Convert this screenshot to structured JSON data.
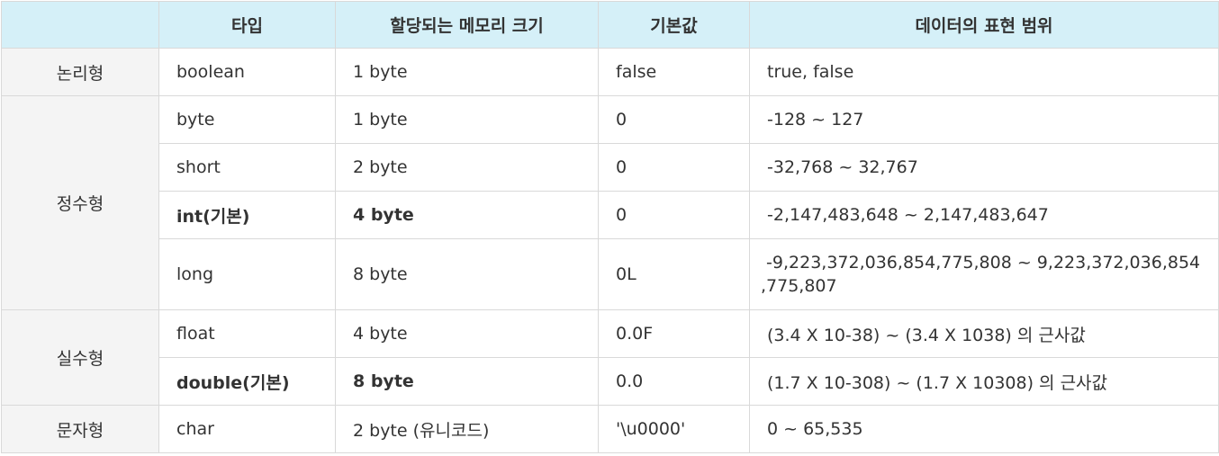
{
  "headers": [
    "",
    "타입",
    "할당되는 메모리 크기",
    "기본값",
    "데이터의 표현 범위"
  ],
  "categories": {
    "logical": "논리형",
    "integer": "정수형",
    "real": "실수형",
    "char": "문자형"
  },
  "rows": [
    {
      "type": "boolean",
      "size": "1 byte",
      "default": "false",
      "range": "true, false",
      "bold": false
    },
    {
      "type": "byte",
      "size": "1 byte",
      "default": "0",
      "range": "-128 ~ 127",
      "bold": false
    },
    {
      "type": "short",
      "size": "2 byte",
      "default": "0",
      "range": "-32,768 ~ 32,767",
      "bold": false
    },
    {
      "type": "int(기본)",
      "size": "4 byte",
      "default": "0",
      "range": "-2,147,483,648 ~ 2,147,483,647",
      "bold": true
    },
    {
      "type": "long",
      "size": "8 byte",
      "default": "0L",
      "range_line1": " -9,223,372,036,854,775,808 ~ 9,223,372,036,854",
      "range_line2": ",775,807",
      "bold": false
    },
    {
      "type": "float",
      "size": "4 byte",
      "default": "0.0F",
      "range": "(3.4 X 10-38) ~ (3.4 X 1038) 의 근사값",
      "bold": false
    },
    {
      "type": "double(기본)",
      "size": "8 byte",
      "default": "0.0",
      "range": "(1.7 X 10-308) ~ (1.7 X 10308) 의 근사값",
      "bold": true
    },
    {
      "type": "char",
      "size": "2 byte (유니코드)",
      "default": "'\\u0000'",
      "range": "0 ~ 65,535",
      "bold": false
    }
  ]
}
